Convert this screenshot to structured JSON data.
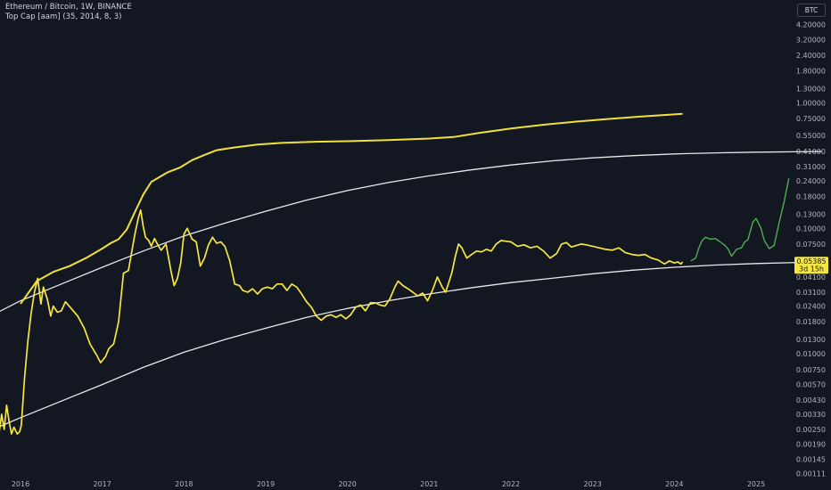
{
  "header": {
    "title": "Ethereum / Bitcoin, 1W, BINANCE",
    "indicator": "Top Cap [aam] (35, 2014, 8, 3)",
    "currency": "BTC"
  },
  "colors": {
    "background": "#131722",
    "price": "#f5e642",
    "top_cap": "#f2e03a",
    "bands": "#e8e8ea",
    "projection": "#4caf50",
    "axis_text": "#b2b5be"
  },
  "chart_data": {
    "type": "line",
    "yscale": "log",
    "ylim": [
      0.001,
      5.8
    ],
    "xlim": [
      2015.6,
      2025.8
    ],
    "y_ticks": [
      "4.20000",
      "3.20000",
      "2.40000",
      "1.80000",
      "1.30000",
      "1.00000",
      "0.75000",
      "0.55000",
      "0.41000",
      "0.31000",
      "0.24000",
      "0.18000",
      "0.13000",
      "0.10000",
      "0.07500",
      "0.04100",
      "0.03100",
      "0.02400",
      "0.01800",
      "0.01300",
      "0.01000",
      "0.00750",
      "0.00570",
      "0.00430",
      "0.00330",
      "0.00250",
      "0.00190",
      "0.00145",
      "0.00111"
    ],
    "x_ticks": [
      "2016",
      "2017",
      "2018",
      "2019",
      "2020",
      "2021",
      "2022",
      "2023",
      "2024",
      "2025"
    ],
    "current_price": {
      "label": "0.05385",
      "value": 0.05385,
      "countdown": "3d 15h"
    },
    "series": [
      {
        "key": "price",
        "points": [
          [
            2015.62,
            0.003
          ],
          [
            2015.64,
            0.0042
          ],
          [
            2015.66,
            0.007
          ],
          [
            2015.69,
            0.0056
          ],
          [
            2015.71,
            0.0031
          ],
          [
            2015.74,
            0.0024
          ],
          [
            2015.77,
            0.0033
          ],
          [
            2015.8,
            0.0025
          ],
          [
            2015.83,
            0.0039
          ],
          [
            2015.86,
            0.0029
          ],
          [
            2015.89,
            0.0023
          ],
          [
            2015.92,
            0.0026
          ],
          [
            2015.96,
            0.0023
          ],
          [
            2015.99,
            0.0024
          ],
          [
            2016.01,
            0.0027
          ],
          [
            2016.05,
            0.0065
          ],
          [
            2016.09,
            0.0125
          ],
          [
            2016.13,
            0.021
          ],
          [
            2016.17,
            0.031
          ],
          [
            2016.21,
            0.04
          ],
          [
            2016.25,
            0.025
          ],
          [
            2016.28,
            0.034
          ],
          [
            2016.33,
            0.027
          ],
          [
            2016.37,
            0.02
          ],
          [
            2016.4,
            0.024
          ],
          [
            2016.45,
            0.0215
          ],
          [
            2016.5,
            0.022
          ],
          [
            2016.55,
            0.026
          ],
          [
            2016.62,
            0.023
          ],
          [
            2016.7,
            0.02
          ],
          [
            2016.78,
            0.016
          ],
          [
            2016.85,
            0.012
          ],
          [
            2016.93,
            0.0098
          ],
          [
            2016.98,
            0.0085
          ],
          [
            2017.04,
            0.0095
          ],
          [
            2017.08,
            0.011
          ],
          [
            2017.14,
            0.012
          ],
          [
            2017.2,
            0.018
          ],
          [
            2017.26,
            0.044
          ],
          [
            2017.32,
            0.046
          ],
          [
            2017.4,
            0.09
          ],
          [
            2017.44,
            0.12
          ],
          [
            2017.47,
            0.14
          ],
          [
            2017.5,
            0.105
          ],
          [
            2017.53,
            0.085
          ],
          [
            2017.57,
            0.08
          ],
          [
            2017.6,
            0.072
          ],
          [
            2017.64,
            0.083
          ],
          [
            2017.68,
            0.074
          ],
          [
            2017.72,
            0.067
          ],
          [
            2017.78,
            0.075
          ],
          [
            2017.84,
            0.046
          ],
          [
            2017.88,
            0.035
          ],
          [
            2017.92,
            0.04
          ],
          [
            2017.96,
            0.053
          ],
          [
            2018.0,
            0.09
          ],
          [
            2018.04,
            0.1
          ],
          [
            2018.1,
            0.082
          ],
          [
            2018.15,
            0.078
          ],
          [
            2018.2,
            0.05
          ],
          [
            2018.25,
            0.058
          ],
          [
            2018.3,
            0.074
          ],
          [
            2018.35,
            0.085
          ],
          [
            2018.4,
            0.076
          ],
          [
            2018.45,
            0.078
          ],
          [
            2018.5,
            0.072
          ],
          [
            2018.56,
            0.055
          ],
          [
            2018.62,
            0.036
          ],
          [
            2018.68,
            0.035
          ],
          [
            2018.72,
            0.032
          ],
          [
            2018.78,
            0.031
          ],
          [
            2018.84,
            0.033
          ],
          [
            2018.9,
            0.03
          ],
          [
            2018.96,
            0.033
          ],
          [
            2019.02,
            0.034
          ],
          [
            2019.08,
            0.033
          ],
          [
            2019.14,
            0.036
          ],
          [
            2019.2,
            0.036
          ],
          [
            2019.26,
            0.032
          ],
          [
            2019.32,
            0.036
          ],
          [
            2019.38,
            0.034
          ],
          [
            2019.44,
            0.03
          ],
          [
            2019.5,
            0.026
          ],
          [
            2019.56,
            0.0235
          ],
          [
            2019.62,
            0.02
          ],
          [
            2019.68,
            0.0185
          ],
          [
            2019.74,
            0.02
          ],
          [
            2019.8,
            0.0205
          ],
          [
            2019.86,
            0.0195
          ],
          [
            2019.92,
            0.0205
          ],
          [
            2019.98,
            0.019
          ],
          [
            2020.04,
            0.0205
          ],
          [
            2020.1,
            0.0235
          ],
          [
            2020.16,
            0.0245
          ],
          [
            2020.22,
            0.022
          ],
          [
            2020.28,
            0.0255
          ],
          [
            2020.34,
            0.0255
          ],
          [
            2020.4,
            0.0245
          ],
          [
            2020.46,
            0.024
          ],
          [
            2020.52,
            0.0275
          ],
          [
            2020.58,
            0.034
          ],
          [
            2020.62,
            0.038
          ],
          [
            2020.68,
            0.035
          ],
          [
            2020.74,
            0.033
          ],
          [
            2020.8,
            0.031
          ],
          [
            2020.86,
            0.029
          ],
          [
            2020.92,
            0.0305
          ],
          [
            2020.98,
            0.0265
          ],
          [
            2021.04,
            0.032
          ],
          [
            2021.1,
            0.041
          ],
          [
            2021.16,
            0.034
          ],
          [
            2021.2,
            0.031
          ],
          [
            2021.24,
            0.037
          ],
          [
            2021.28,
            0.045
          ],
          [
            2021.32,
            0.06
          ],
          [
            2021.36,
            0.075
          ],
          [
            2021.4,
            0.07
          ],
          [
            2021.46,
            0.058
          ],
          [
            2021.52,
            0.062
          ],
          [
            2021.58,
            0.066
          ],
          [
            2021.64,
            0.065
          ],
          [
            2021.7,
            0.068
          ],
          [
            2021.76,
            0.066
          ],
          [
            2021.82,
            0.075
          ],
          [
            2021.88,
            0.08
          ],
          [
            2021.94,
            0.079
          ],
          [
            2022.0,
            0.078
          ],
          [
            2022.08,
            0.072
          ],
          [
            2022.16,
            0.074
          ],
          [
            2022.24,
            0.07
          ],
          [
            2022.32,
            0.072
          ],
          [
            2022.4,
            0.066
          ],
          [
            2022.48,
            0.058
          ],
          [
            2022.56,
            0.063
          ],
          [
            2022.62,
            0.075
          ],
          [
            2022.68,
            0.077
          ],
          [
            2022.74,
            0.071
          ],
          [
            2022.8,
            0.073
          ],
          [
            2022.86,
            0.075
          ],
          [
            2022.92,
            0.074
          ],
          [
            2023.0,
            0.072
          ],
          [
            2023.08,
            0.07
          ],
          [
            2023.16,
            0.068
          ],
          [
            2023.24,
            0.067
          ],
          [
            2023.32,
            0.07
          ],
          [
            2023.4,
            0.064
          ],
          [
            2023.48,
            0.062
          ],
          [
            2023.56,
            0.061
          ],
          [
            2023.64,
            0.062
          ],
          [
            2023.72,
            0.058
          ],
          [
            2023.8,
            0.056
          ],
          [
            2023.88,
            0.052
          ],
          [
            2023.94,
            0.055
          ],
          [
            2024.0,
            0.053
          ],
          [
            2024.04,
            0.054
          ],
          [
            2024.08,
            0.052
          ],
          [
            2024.1,
            0.054
          ]
        ]
      },
      {
        "key": "projection",
        "points": [
          [
            2024.2,
            0.055
          ],
          [
            2024.26,
            0.058
          ],
          [
            2024.3,
            0.07
          ],
          [
            2024.34,
            0.08
          ],
          [
            2024.38,
            0.085
          ],
          [
            2024.44,
            0.082
          ],
          [
            2024.5,
            0.083
          ],
          [
            2024.56,
            0.078
          ],
          [
            2024.62,
            0.073
          ],
          [
            2024.66,
            0.068
          ],
          [
            2024.7,
            0.06
          ],
          [
            2024.76,
            0.068
          ],
          [
            2024.82,
            0.07
          ],
          [
            2024.86,
            0.078
          ],
          [
            2024.9,
            0.081
          ],
          [
            2024.96,
            0.112
          ],
          [
            2025.0,
            0.12
          ],
          [
            2025.06,
            0.1
          ],
          [
            2025.1,
            0.08
          ],
          [
            2025.16,
            0.069
          ],
          [
            2025.22,
            0.073
          ],
          [
            2025.28,
            0.11
          ],
          [
            2025.34,
            0.16
          ],
          [
            2025.4,
            0.25
          ]
        ]
      },
      {
        "key": "top_cap",
        "points": [
          [
            2016.0,
            0.025
          ],
          [
            2016.2,
            0.038
          ],
          [
            2016.4,
            0.045
          ],
          [
            2016.6,
            0.05
          ],
          [
            2016.8,
            0.058
          ],
          [
            2017.0,
            0.069
          ],
          [
            2017.1,
            0.076
          ],
          [
            2017.2,
            0.082
          ],
          [
            2017.3,
            0.098
          ],
          [
            2017.4,
            0.135
          ],
          [
            2017.5,
            0.185
          ],
          [
            2017.6,
            0.235
          ],
          [
            2017.8,
            0.28
          ],
          [
            2017.95,
            0.305
          ],
          [
            2018.1,
            0.35
          ],
          [
            2018.25,
            0.385
          ],
          [
            2018.4,
            0.42
          ],
          [
            2018.6,
            0.44
          ],
          [
            2018.9,
            0.465
          ],
          [
            2019.2,
            0.48
          ],
          [
            2019.6,
            0.49
          ],
          [
            2020.0,
            0.495
          ],
          [
            2020.5,
            0.505
          ],
          [
            2021.0,
            0.52
          ],
          [
            2021.3,
            0.535
          ],
          [
            2021.6,
            0.575
          ],
          [
            2022.0,
            0.625
          ],
          [
            2022.4,
            0.67
          ],
          [
            2022.8,
            0.71
          ],
          [
            2023.2,
            0.745
          ],
          [
            2023.6,
            0.78
          ],
          [
            2024.0,
            0.81
          ],
          [
            2024.1,
            0.82
          ]
        ]
      },
      {
        "key": "upper_band",
        "points": [
          [
            2015.6,
            0.0195
          ],
          [
            2016.0,
            0.0265
          ],
          [
            2016.5,
            0.036
          ],
          [
            2017.0,
            0.049
          ],
          [
            2017.5,
            0.066
          ],
          [
            2018.0,
            0.087
          ],
          [
            2018.5,
            0.11
          ],
          [
            2019.0,
            0.137
          ],
          [
            2019.5,
            0.168
          ],
          [
            2020.0,
            0.2
          ],
          [
            2020.5,
            0.232
          ],
          [
            2021.0,
            0.262
          ],
          [
            2021.5,
            0.292
          ],
          [
            2022.0,
            0.32
          ],
          [
            2022.5,
            0.345
          ],
          [
            2023.0,
            0.365
          ],
          [
            2023.5,
            0.38
          ],
          [
            2024.0,
            0.392
          ],
          [
            2024.5,
            0.4
          ],
          [
            2025.0,
            0.405
          ],
          [
            2025.8,
            0.41
          ]
        ]
      },
      {
        "key": "lower_band",
        "points": [
          [
            2015.6,
            0.0024
          ],
          [
            2016.0,
            0.0031
          ],
          [
            2016.5,
            0.0042
          ],
          [
            2017.0,
            0.0057
          ],
          [
            2017.5,
            0.0078
          ],
          [
            2018.0,
            0.0103
          ],
          [
            2018.5,
            0.013
          ],
          [
            2019.0,
            0.016
          ],
          [
            2019.5,
            0.0195
          ],
          [
            2020.0,
            0.023
          ],
          [
            2020.5,
            0.0265
          ],
          [
            2021.0,
            0.03
          ],
          [
            2021.5,
            0.0335
          ],
          [
            2022.0,
            0.037
          ],
          [
            2022.5,
            0.04
          ],
          [
            2023.0,
            0.0435
          ],
          [
            2023.5,
            0.0465
          ],
          [
            2024.0,
            0.049
          ],
          [
            2024.5,
            0.051
          ],
          [
            2025.0,
            0.0525
          ],
          [
            2025.8,
            0.054
          ]
        ]
      }
    ]
  }
}
